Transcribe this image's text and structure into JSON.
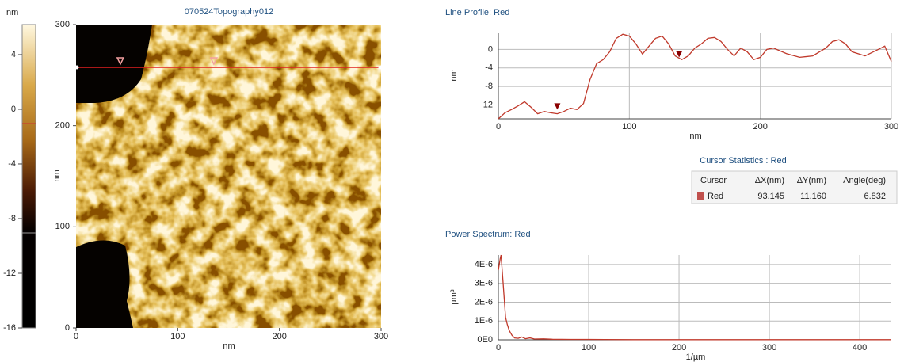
{
  "colorbar": {
    "unit": "nm",
    "lim": [
      -16,
      6.2
    ],
    "ticks": [
      4,
      0,
      -4,
      -8,
      -12,
      -16
    ]
  },
  "image": {
    "title": "070524Topography012",
    "xlabel": "nm",
    "ylabel": "nm",
    "xlim": [
      0,
      300
    ],
    "ylim": [
      0,
      300
    ],
    "xticks": [
      0,
      100,
      200,
      300
    ],
    "yticks": [
      0,
      100,
      200,
      300
    ],
    "line_y": 257.7,
    "cursors_x": [
      43.6,
      135.5
    ]
  },
  "line_profile": {
    "type": "line",
    "title": "Line Profile: Red",
    "xlabel": "nm",
    "ylabel": "nm",
    "color": "#c0392b",
    "x": [
      0,
      5,
      10,
      15,
      20,
      25,
      30,
      35,
      40,
      45,
      50,
      55,
      60,
      65,
      70,
      75,
      80,
      85,
      90,
      95,
      100,
      105,
      110,
      115,
      120,
      125,
      130,
      135,
      140,
      145,
      150,
      155,
      160,
      165,
      170,
      175,
      180,
      185,
      190,
      195,
      200,
      205,
      210,
      220,
      230,
      240,
      250,
      255,
      260,
      265,
      270,
      280,
      290,
      295,
      300
    ],
    "values": [
      -15,
      -13.7,
      -13,
      -12.2,
      -11.3,
      -12.5,
      -13.9,
      -13.4,
      -13.7,
      -13.9,
      -13.4,
      -12.7,
      -13,
      -11.7,
      -6.5,
      -3.1,
      -2.2,
      -0.5,
      2.4,
      3.3,
      2.9,
      1.2,
      -1,
      0.7,
      2.4,
      2.9,
      1.2,
      -1.4,
      -2.2,
      -1.4,
      0.3,
      1.2,
      2.4,
      2.6,
      1.7,
      0,
      -1.4,
      0.3,
      -0.5,
      -2.2,
      -1.7,
      0,
      0.3,
      -0.9,
      -1.7,
      -1.4,
      0.3,
      1.7,
      2.1,
      1.2,
      -0.5,
      -1.4,
      0,
      0.7,
      -2.6
    ],
    "xlim": [
      0,
      300
    ],
    "ylim": [
      -15,
      3.5
    ],
    "xticks": [
      0,
      100,
      200,
      300
    ],
    "yticks": [
      0,
      -4,
      -8,
      -12
    ],
    "cursors": {
      "x": [
        45,
        138
      ],
      "y": [
        -12.5,
        -1.2
      ]
    }
  },
  "cursor_stats": {
    "title": "Cursor Statistics : Red",
    "header": [
      "Cursor",
      "ΔX(nm)",
      "ΔY(nm)",
      "Angle(deg)"
    ],
    "rows": [
      [
        "Red",
        "93.145",
        "11.160",
        "6.832"
      ]
    ]
  },
  "power_spectrum": {
    "type": "line",
    "title": "Power Spectrum: Red",
    "xlabel": "1/µm",
    "ylabel": "µm³",
    "color": "#c0392b",
    "x": [
      0,
      2,
      3,
      5,
      8,
      10,
      12,
      15,
      18,
      22,
      26,
      30,
      35,
      40,
      50,
      60,
      80,
      100,
      150,
      200,
      300,
      400,
      435
    ],
    "values": [
      3.7e-06,
      4.3e-06,
      4.5e-06,
      3.2e-06,
      1.2e-06,
      8e-07,
      5e-07,
      2.5e-07,
      1e-07,
      8e-08,
      1.5e-07,
      6e-08,
      1e-07,
      4e-08,
      5e-08,
      3e-08,
      2e-08,
      2e-08,
      1e-08,
      1e-08,
      1e-08,
      1e-08,
      1e-08
    ],
    "xlim": [
      0,
      435
    ],
    "ylim": [
      0,
      4.5e-06
    ],
    "xticks": [
      0,
      100,
      200,
      300,
      400
    ],
    "yticks": [
      {
        "value": 0,
        "label": "0E0"
      },
      {
        "value": 1e-06,
        "label": "1E-6"
      },
      {
        "value": 2e-06,
        "label": "2E-6"
      },
      {
        "value": 3e-06,
        "label": "3E-6"
      },
      {
        "value": 4e-06,
        "label": "4E-6"
      }
    ]
  }
}
